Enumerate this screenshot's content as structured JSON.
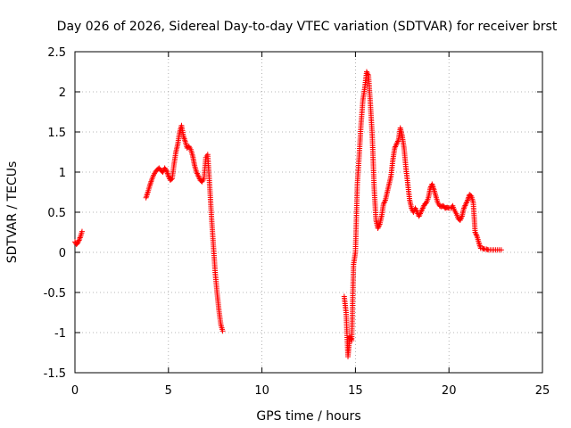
{
  "chart_data": {
    "type": "scatter",
    "title": "Day 026 of 2026, Sidereal Day-to-day VTEC variation (SDTVAR) for receiver brst",
    "xlabel": "GPS time / hours",
    "ylabel": "SDTVAR / TECUs",
    "xlim": [
      0,
      25
    ],
    "ylim": [
      -1.5,
      2.5
    ],
    "xticks": [
      0,
      5,
      10,
      15,
      20,
      25
    ],
    "xtick_labels": [
      "0",
      "5",
      "10",
      "15",
      "20",
      "25"
    ],
    "yticks": [
      -1.5,
      -1,
      -0.5,
      0,
      0.5,
      1,
      1.5,
      2,
      2.5
    ],
    "ytick_labels": [
      "-1.5",
      "-1",
      "-0.5",
      "0",
      "0.5",
      "1",
      "1.5",
      "2",
      "2.5"
    ],
    "grid": true,
    "marker": "plus",
    "color": "#ff0000",
    "series": [
      {
        "name": "SDTVAR",
        "segments": [
          {
            "x": [
              0.0,
              0.08,
              0.15,
              0.22,
              0.3,
              0.38
            ],
            "y": [
              0.13,
              0.1,
              0.12,
              0.15,
              0.2,
              0.26
            ]
          },
          {
            "x": [
              3.8,
              3.9,
              4.0,
              4.1,
              4.2,
              4.3,
              4.4,
              4.5,
              4.6,
              4.7,
              4.8,
              4.9,
              5.0,
              5.1,
              5.2,
              5.3,
              5.4,
              5.5,
              5.6,
              5.7,
              5.8,
              5.9,
              6.0,
              6.1,
              6.2,
              6.3,
              6.4,
              6.5,
              6.6,
              6.7,
              6.8,
              6.9,
              7.0,
              7.1,
              7.2,
              7.3,
              7.4,
              7.5,
              7.6,
              7.7,
              7.8,
              7.9
            ],
            "y": [
              0.68,
              0.75,
              0.83,
              0.9,
              0.96,
              1.0,
              1.03,
              1.05,
              1.02,
              1.0,
              1.05,
              1.02,
              0.95,
              0.9,
              0.92,
              1.1,
              1.25,
              1.35,
              1.5,
              1.58,
              1.45,
              1.38,
              1.3,
              1.32,
              1.28,
              1.2,
              1.08,
              1.0,
              0.95,
              0.9,
              0.88,
              0.92,
              1.18,
              1.22,
              0.85,
              0.45,
              0.1,
              -0.25,
              -0.5,
              -0.72,
              -0.9,
              -0.98
            ]
          },
          {
            "x": [
              14.4,
              14.5,
              14.6,
              14.7,
              14.8,
              14.9,
              15.0,
              15.1,
              15.2,
              15.3,
              15.4,
              15.5,
              15.6,
              15.7,
              15.8,
              15.9,
              16.0,
              16.1,
              16.2,
              16.3,
              16.4,
              16.5,
              16.6,
              16.7,
              16.8,
              16.9,
              17.0,
              17.1,
              17.2,
              17.3,
              17.4,
              17.5,
              17.6,
              17.7,
              17.8,
              17.9,
              18.0,
              18.1,
              18.2,
              18.3,
              18.4,
              18.5,
              18.6,
              18.7,
              18.8,
              18.9,
              19.0,
              19.1,
              19.2,
              19.3,
              19.4,
              19.5,
              19.6,
              19.7,
              19.8,
              19.9,
              20.0,
              20.1,
              20.2,
              20.3,
              20.4,
              20.5,
              20.6,
              20.7,
              20.8,
              20.9,
              21.0,
              21.1,
              21.2,
              21.3,
              21.4,
              21.5,
              21.6,
              21.7,
              21.8,
              21.9,
              22.0,
              22.1,
              22.2,
              22.3,
              22.4,
              22.5,
              22.6,
              22.7,
              22.8
            ],
            "y": [
              -0.55,
              -0.75,
              -1.3,
              -1.05,
              -1.1,
              -0.15,
              0.0,
              0.85,
              1.2,
              1.6,
              1.9,
              2.05,
              2.25,
              2.2,
              1.85,
              1.45,
              0.8,
              0.4,
              0.3,
              0.35,
              0.45,
              0.6,
              0.65,
              0.75,
              0.85,
              0.95,
              1.15,
              1.3,
              1.35,
              1.4,
              1.55,
              1.45,
              1.3,
              1.05,
              0.85,
              0.65,
              0.55,
              0.5,
              0.55,
              0.5,
              0.45,
              0.5,
              0.55,
              0.6,
              0.62,
              0.68,
              0.8,
              0.85,
              0.78,
              0.7,
              0.62,
              0.58,
              0.57,
              0.58,
              0.55,
              0.56,
              0.55,
              0.55,
              0.58,
              0.52,
              0.48,
              0.42,
              0.4,
              0.45,
              0.55,
              0.6,
              0.65,
              0.72,
              0.7,
              0.62,
              0.25,
              0.2,
              0.12,
              0.05,
              0.05,
              0.04,
              0.04,
              0.03,
              0.03,
              0.03,
              0.03,
              0.03,
              0.03,
              0.03,
              0.03
            ]
          }
        ]
      }
    ]
  }
}
